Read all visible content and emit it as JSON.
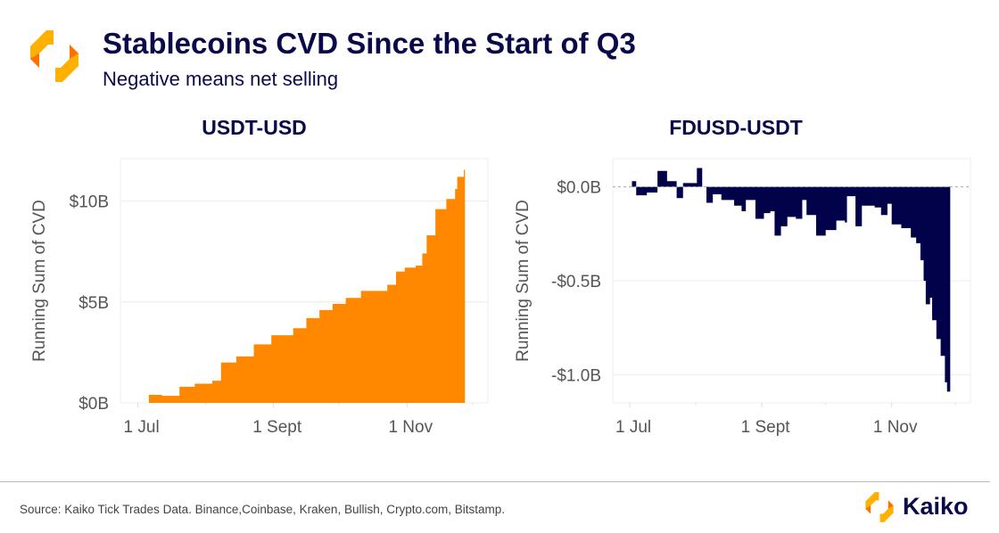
{
  "header": {
    "title": "Stablecoins CVD Since the Start of Q3",
    "subtitle": "Negative means net selling"
  },
  "footer": {
    "source": "Source: Kaiko Tick Trades Data. Binance,Coinbase, Kraken, Bullish, Crypto.com, Bitstamp.",
    "brand": "Kaiko"
  },
  "colors": {
    "title": "#0a0a4a",
    "usdt": "#ff8800",
    "fdusd": "#02024a",
    "grid": "#ececec"
  },
  "chart_data": [
    {
      "type": "area",
      "title": "USDT-USD",
      "ylabel": "Running Sum of CVD",
      "xlabel": "",
      "x_unit": "days since 1 Jul",
      "xlim": [
        -8,
        160
      ],
      "ylim": [
        0,
        12.1
      ],
      "yticks": [
        {
          "v": 0,
          "label": "$0B"
        },
        {
          "v": 5,
          "label": "$5B"
        },
        {
          "v": 10,
          "label": "$10B"
        }
      ],
      "xticks": [
        {
          "v": 0,
          "label": "1 Jul"
        },
        {
          "v": 62,
          "label": "1 Sept"
        },
        {
          "v": 123,
          "label": "1 Nov"
        }
      ],
      "minor_xticks": [
        31,
        92,
        153
      ],
      "color": "#ff8800",
      "x": [
        0,
        5,
        11,
        19,
        26,
        34,
        38,
        45,
        53,
        61,
        71,
        77,
        83,
        89,
        95,
        102,
        114,
        118,
        122,
        127,
        130,
        132,
        136,
        141,
        145,
        146,
        149,
        149.5
      ],
      "y": [
        0,
        0.4,
        0.35,
        0.8,
        0.95,
        1.1,
        2.0,
        2.3,
        2.9,
        3.35,
        3.7,
        4.2,
        4.6,
        4.9,
        5.2,
        5.55,
        5.85,
        6.5,
        6.7,
        6.8,
        7.4,
        8.3,
        9.6,
        10.1,
        10.6,
        11.2,
        11.55,
        11.5
      ]
    },
    {
      "type": "area",
      "title": "FDUSD-USDT",
      "ylabel": "Running Sum of CVD",
      "xlabel": "",
      "x_unit": "days since 1 Jul",
      "xlim": [
        -8,
        160
      ],
      "ylim": [
        -1.15,
        0.15
      ],
      "yticks": [
        {
          "v": 0,
          "label": "$0.0B"
        },
        {
          "v": -0.5,
          "label": "-$0.5B"
        },
        {
          "v": -1.0,
          "label": "-$1.0B"
        }
      ],
      "xticks": [
        {
          "v": 0,
          "label": "1 Jul"
        },
        {
          "v": 62,
          "label": "1 Sept"
        },
        {
          "v": 123,
          "label": "1 Nov"
        }
      ],
      "minor_xticks": [
        31,
        92,
        153
      ],
      "color": "#02024a",
      "x": [
        0,
        1,
        3,
        8,
        13,
        17.5,
        22,
        25,
        31.5,
        34,
        36,
        39,
        43,
        49,
        52.5,
        54.5,
        59,
        63,
        66,
        68,
        71,
        74,
        78,
        81,
        83,
        87.5,
        92,
        97,
        101,
        102,
        106,
        109,
        115,
        118,
        121,
        123,
        127.5,
        132,
        134.5,
        136.5,
        138,
        139,
        141,
        142,
        144,
        146,
        148,
        149,
        150.5
      ],
      "y": [
        0,
        0.03,
        -0.045,
        -0.03,
        0.085,
        0.03,
        -0.06,
        0.02,
        0.1,
        0,
        -0.085,
        -0.04,
        -0.07,
        -0.1,
        -0.13,
        -0.07,
        -0.17,
        -0.14,
        -0.13,
        -0.26,
        -0.21,
        -0.16,
        -0.17,
        -0.07,
        -0.15,
        -0.26,
        -0.23,
        -0.18,
        -0.19,
        -0.05,
        -0.21,
        -0.1,
        -0.11,
        -0.15,
        -0.09,
        -0.2,
        -0.22,
        -0.27,
        -0.3,
        -0.39,
        -0.5,
        -0.625,
        -0.59,
        -0.71,
        -0.81,
        -0.9,
        -1.04,
        -1.09,
        -1.08
      ],
      "zero_line": "dashed"
    }
  ]
}
